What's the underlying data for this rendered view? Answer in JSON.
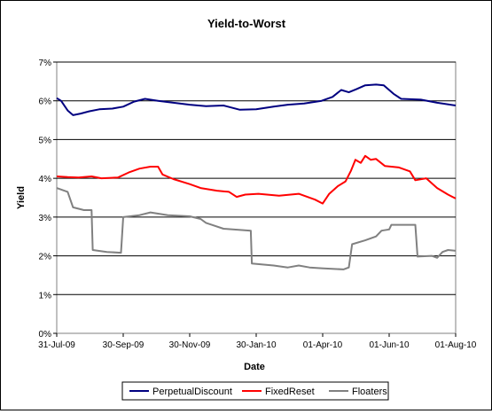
{
  "chart_data": {
    "type": "line",
    "title": "Yield-to-Worst",
    "xlabel": "Date",
    "ylabel": "Yield",
    "ylim": [
      0,
      0.07
    ],
    "y_ticks": [
      "0%",
      "1%",
      "2%",
      "3%",
      "4%",
      "5%",
      "6%",
      "7%"
    ],
    "x_ticks": [
      "31-Jul-09",
      "30-Sep-09",
      "30-Nov-09",
      "30-Jan-10",
      "01-Apr-10",
      "01-Jun-10",
      "01-Aug-10"
    ],
    "x_range": [
      "2009-07-31",
      "2010-08-01"
    ],
    "grid": "horizontal",
    "legend_position": "bottom",
    "series": [
      {
        "name": "PerpetualDiscount",
        "color": "#000080",
        "points": [
          [
            "2009-07-31",
            0.0607
          ],
          [
            "2009-08-04",
            0.06
          ],
          [
            "2009-08-10",
            0.0575
          ],
          [
            "2009-08-15",
            0.0563
          ],
          [
            "2009-08-22",
            0.0567
          ],
          [
            "2009-08-30",
            0.0573
          ],
          [
            "2009-09-08",
            0.0578
          ],
          [
            "2009-09-20",
            0.058
          ],
          [
            "2009-09-30",
            0.0585
          ],
          [
            "2009-10-10",
            0.0598
          ],
          [
            "2009-10-20",
            0.0605
          ],
          [
            "2009-11-01",
            0.06
          ],
          [
            "2009-11-15",
            0.0595
          ],
          [
            "2009-11-30",
            0.059
          ],
          [
            "2009-12-15",
            0.0586
          ],
          [
            "2009-12-31",
            0.0588
          ],
          [
            "2010-01-15",
            0.0577
          ],
          [
            "2010-01-30",
            0.0578
          ],
          [
            "2010-02-15",
            0.0585
          ],
          [
            "2010-02-28",
            0.059
          ],
          [
            "2010-03-15",
            0.0593
          ],
          [
            "2010-03-31",
            0.06
          ],
          [
            "2010-04-10",
            0.061
          ],
          [
            "2010-04-18",
            0.0628
          ],
          [
            "2010-04-25",
            0.0622
          ],
          [
            "2010-05-02",
            0.063
          ],
          [
            "2010-05-10",
            0.064
          ],
          [
            "2010-05-20",
            0.0642
          ],
          [
            "2010-05-27",
            0.064
          ],
          [
            "2010-06-05",
            0.0618
          ],
          [
            "2010-06-12",
            0.0605
          ],
          [
            "2010-06-30",
            0.0603
          ],
          [
            "2010-07-15",
            0.0595
          ],
          [
            "2010-08-01",
            0.0588
          ]
        ]
      },
      {
        "name": "FixedReset",
        "color": "#ff0000",
        "points": [
          [
            "2009-07-31",
            0.0405
          ],
          [
            "2009-08-10",
            0.0403
          ],
          [
            "2009-08-20",
            0.0402
          ],
          [
            "2009-09-01",
            0.0405
          ],
          [
            "2009-09-10",
            0.04
          ],
          [
            "2009-09-25",
            0.0402
          ],
          [
            "2009-10-05",
            0.0415
          ],
          [
            "2009-10-15",
            0.0425
          ],
          [
            "2009-10-25",
            0.043
          ],
          [
            "2009-11-01",
            0.043
          ],
          [
            "2009-11-05",
            0.041
          ],
          [
            "2009-11-15",
            0.0398
          ],
          [
            "2009-11-30",
            0.0385
          ],
          [
            "2009-12-10",
            0.0375
          ],
          [
            "2009-12-25",
            0.0368
          ],
          [
            "2010-01-05",
            0.0365
          ],
          [
            "2010-01-12",
            0.0352
          ],
          [
            "2010-01-20",
            0.0358
          ],
          [
            "2010-02-01",
            0.036
          ],
          [
            "2010-02-20",
            0.0355
          ],
          [
            "2010-03-10",
            0.036
          ],
          [
            "2010-03-25",
            0.0345
          ],
          [
            "2010-04-01",
            0.0335
          ],
          [
            "2010-04-07",
            0.036
          ],
          [
            "2010-04-15",
            0.038
          ],
          [
            "2010-04-22",
            0.0392
          ],
          [
            "2010-04-27",
            0.042
          ],
          [
            "2010-05-01",
            0.0448
          ],
          [
            "2010-05-06",
            0.044
          ],
          [
            "2010-05-10",
            0.0458
          ],
          [
            "2010-05-15",
            0.0448
          ],
          [
            "2010-05-20",
            0.045
          ],
          [
            "2010-05-28",
            0.0432
          ],
          [
            "2010-06-10",
            0.0428
          ],
          [
            "2010-06-20",
            0.0418
          ],
          [
            "2010-06-25",
            0.0395
          ],
          [
            "2010-07-05",
            0.04
          ],
          [
            "2010-07-15",
            0.0375
          ],
          [
            "2010-07-25",
            0.0358
          ],
          [
            "2010-08-01",
            0.0348
          ]
        ]
      },
      {
        "name": "Floaters",
        "color": "#808080",
        "points": [
          [
            "2009-07-31",
            0.0375
          ],
          [
            "2009-08-10",
            0.0365
          ],
          [
            "2009-08-15",
            0.0325
          ],
          [
            "2009-08-25",
            0.0318
          ],
          [
            "2009-09-01",
            0.0318
          ],
          [
            "2009-09-02",
            0.0215
          ],
          [
            "2009-09-15",
            0.021
          ],
          [
            "2009-09-28",
            0.0208
          ],
          [
            "2009-09-30",
            0.03
          ],
          [
            "2009-10-15",
            0.0305
          ],
          [
            "2009-10-25",
            0.0312
          ],
          [
            "2009-11-10",
            0.0305
          ],
          [
            "2009-11-30",
            0.0302
          ],
          [
            "2009-12-10",
            0.0295
          ],
          [
            "2009-12-15",
            0.0285
          ],
          [
            "2009-12-31",
            0.027
          ],
          [
            "2010-01-25",
            0.0265
          ],
          [
            "2010-01-26",
            0.018
          ],
          [
            "2010-02-15",
            0.0175
          ],
          [
            "2010-02-28",
            0.017
          ],
          [
            "2010-03-10",
            0.0175
          ],
          [
            "2010-03-20",
            0.017
          ],
          [
            "2010-03-31",
            0.0168
          ],
          [
            "2010-04-20",
            0.0165
          ],
          [
            "2010-04-25",
            0.017
          ],
          [
            "2010-04-28",
            0.023
          ],
          [
            "2010-05-10",
            0.024
          ],
          [
            "2010-05-20",
            0.025
          ],
          [
            "2010-05-25",
            0.0265
          ],
          [
            "2010-06-01",
            0.0268
          ],
          [
            "2010-06-03",
            0.028
          ],
          [
            "2010-06-20",
            0.028
          ],
          [
            "2010-06-25",
            0.028
          ],
          [
            "2010-06-27",
            0.0198
          ],
          [
            "2010-07-10",
            0.02
          ],
          [
            "2010-07-15",
            0.0195
          ],
          [
            "2010-07-20",
            0.021
          ],
          [
            "2010-07-25",
            0.0215
          ],
          [
            "2010-08-01",
            0.0213
          ]
        ]
      }
    ]
  }
}
